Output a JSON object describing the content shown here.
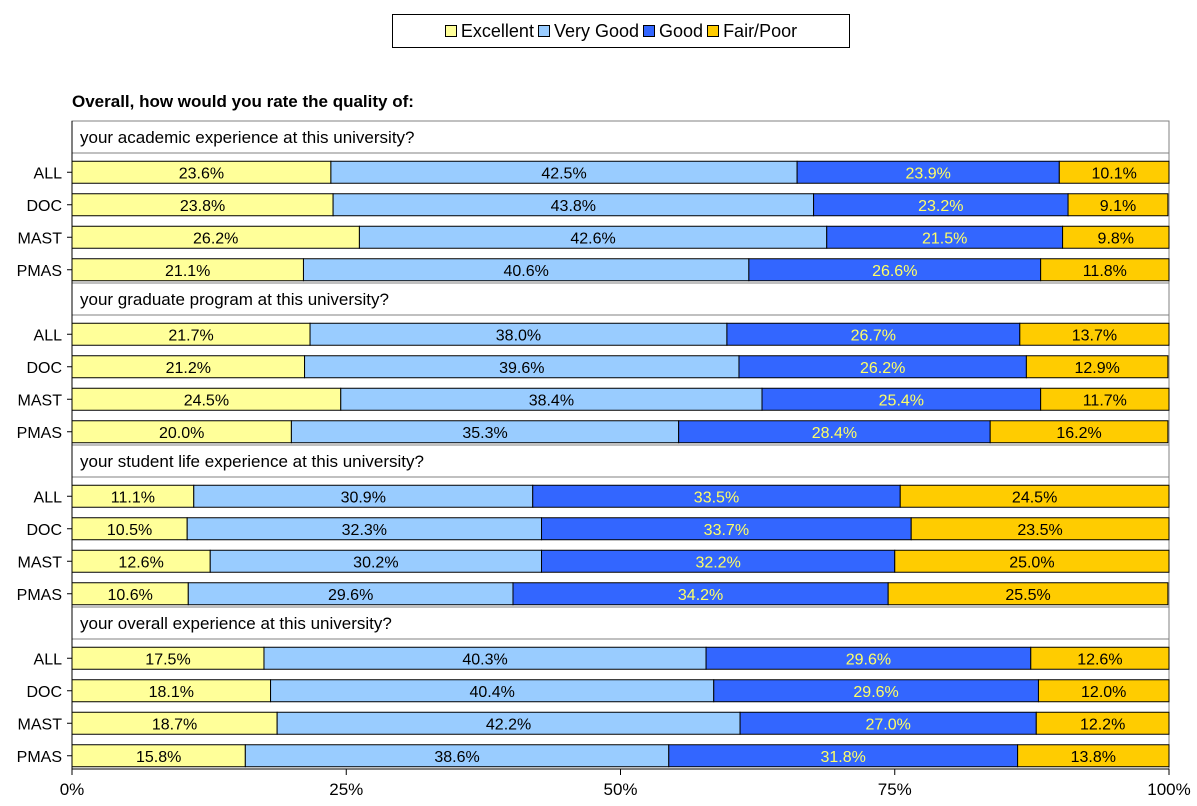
{
  "chart_data": {
    "type": "bar",
    "orientation": "horizontal",
    "stacked": true,
    "title": "Overall, how would you rate the quality of:",
    "xlim": [
      0,
      100
    ],
    "x_ticks": [
      "0%",
      "25%",
      "50%",
      "75%",
      "100%"
    ],
    "legend_position": "top",
    "legend": [
      "Excellent",
      "Very Good",
      "Good",
      "Fair/Poor"
    ],
    "colors": [
      "#ffff99",
      "#99ccff",
      "#3366ff",
      "#ffcc00"
    ],
    "label_colors": [
      "#000000",
      "#000000",
      "#ffff66",
      "#000000"
    ],
    "groups": [
      {
        "question": "your academic experience at this university?",
        "rows": [
          {
            "label": "ALL",
            "values": [
              23.6,
              42.5,
              23.9,
              10.1
            ]
          },
          {
            "label": "DOC",
            "values": [
              23.8,
              43.8,
              23.2,
              9.1
            ]
          },
          {
            "label": "MAST",
            "values": [
              26.2,
              42.6,
              21.5,
              9.8
            ]
          },
          {
            "label": "PMAS",
            "values": [
              21.1,
              40.6,
              26.6,
              11.8
            ]
          }
        ]
      },
      {
        "question": "your graduate program at this university?",
        "rows": [
          {
            "label": "ALL",
            "values": [
              21.7,
              38.0,
              26.7,
              13.7
            ]
          },
          {
            "label": "DOC",
            "values": [
              21.2,
              39.6,
              26.2,
              12.9
            ]
          },
          {
            "label": "MAST",
            "values": [
              24.5,
              38.4,
              25.4,
              11.7
            ]
          },
          {
            "label": "PMAS",
            "values": [
              20.0,
              35.3,
              28.4,
              16.2
            ]
          }
        ]
      },
      {
        "question": "your student life experience at this university?",
        "rows": [
          {
            "label": "ALL",
            "values": [
              11.1,
              30.9,
              33.5,
              24.5
            ]
          },
          {
            "label": "DOC",
            "values": [
              10.5,
              32.3,
              33.7,
              23.5
            ]
          },
          {
            "label": "MAST",
            "values": [
              12.6,
              30.2,
              32.2,
              25.0
            ]
          },
          {
            "label": "PMAS",
            "values": [
              10.6,
              29.6,
              34.2,
              25.5
            ]
          }
        ]
      },
      {
        "question": "your overall experience at this university?",
        "rows": [
          {
            "label": "ALL",
            "values": [
              17.5,
              40.3,
              29.6,
              12.6
            ]
          },
          {
            "label": "DOC",
            "values": [
              18.1,
              40.4,
              29.6,
              12.0
            ]
          },
          {
            "label": "MAST",
            "values": [
              18.7,
              42.2,
              27.0,
              12.2
            ]
          },
          {
            "label": "PMAS",
            "values": [
              15.8,
              38.6,
              31.8,
              13.8
            ]
          }
        ]
      }
    ]
  }
}
